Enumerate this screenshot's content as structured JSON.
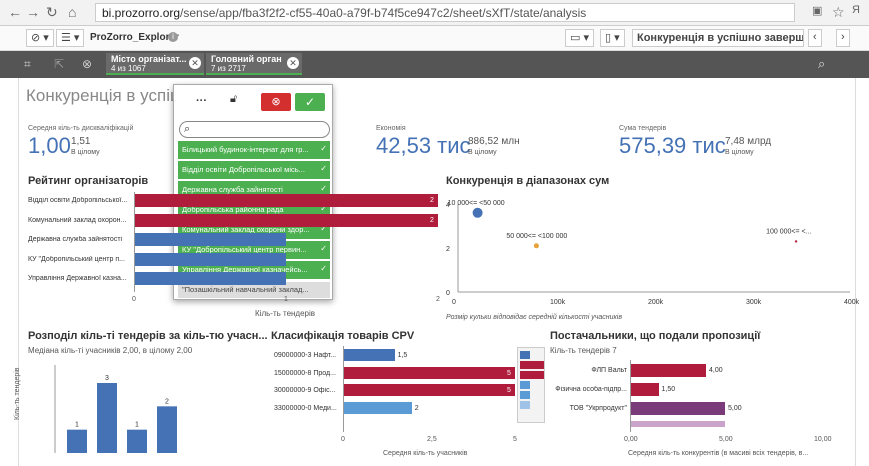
{
  "browser": {
    "url_domain": "bi.prozorro.org",
    "url_path": "/sense/app/fba3f2f2-cf55-40a0-a79f-b74f5ce947c2/sheet/sXfT/state/analysis"
  },
  "toolbar": {
    "app_name": "ProZorro_Explorer",
    "sheet_selector": "Конкуренція в успішно заверш..."
  },
  "selections": [
    {
      "field": "Місто організат...",
      "count": "4 из 1067"
    },
    {
      "field": "Головний орган",
      "count": "7 из 2717"
    }
  ],
  "sheet": {
    "title": "Конкуренція в успішно"
  },
  "kpis": [
    {
      "label": "Середня кіль-ть дискваліфікацій",
      "value": "1,00",
      "side_value": "1,51",
      "side_sub": "В цілому"
    },
    {
      "label": "Економія",
      "value": "42,53 тис",
      "side_value": "886,52 млн",
      "side_sub": "В цілому"
    },
    {
      "label": "Сума тендерів",
      "value": "575,39 тис",
      "side_value": "7,48 млрд",
      "side_sub": "В цілому"
    }
  ],
  "rating": {
    "title": "Рейтинг організаторів",
    "xlabel": "Кіль-ть тендерів",
    "ticks": [
      "0",
      "1",
      "2"
    ]
  },
  "range": {
    "title": "Конкуренція в діапазонах сум",
    "footnote": "Розмір кульки відповідає середній кількості учасників",
    "ytick": [
      "4",
      "2",
      "0"
    ],
    "xtick": [
      "0",
      "100k",
      "200k",
      "300k",
      "400k"
    ],
    "labels": [
      "10 000<= <50 000",
      "50 000<= <100 000",
      "100 000<= <..."
    ]
  },
  "distribution": {
    "title": "Розподіл кіль-ті тендерів за кіль-тю учасн...",
    "subtitle": "Медіана кіль-ті учасників 2,00, в цілому 2,00",
    "ylabel": "Кіль-ть тендерів"
  },
  "cpv": {
    "title": "Класифікація товарів CPV",
    "xlabel": "Середня кіль-ть учасників",
    "ticks": [
      "0",
      "2,5",
      "5"
    ]
  },
  "suppliers": {
    "title": "Постачальники, що подали пропозиції",
    "subtitle": "Кіль-ть тендерів 7",
    "xlabel": "Середня кіль-ть конкурентів (в масиві всіх тендерів, в...",
    "ticks": [
      "0,00",
      "5,00",
      "10,00"
    ]
  },
  "popup": {
    "search_value": "",
    "items": [
      "Білицький будинок-інтернат для гр...",
      "Відділ освіти Добропільської місь...",
      "Державна служба зайнятості",
      "Добропільська районна рада",
      "Комунальний заклад охорони здор...",
      "КУ \"Добропільський центр первин...",
      "Управління Державної казначейсь..."
    ],
    "extra_item": "\"Позашкільний навчальний заклад..."
  },
  "chart_data": [
    {
      "type": "bar",
      "title": "Рейтинг організаторів",
      "categories": [
        "Відділ освіти Добропільської...",
        "Комунальний заклад охорон...",
        "Державна служба зайнятості",
        "КУ \"Добропільський центр п...",
        "Управління Державної казна..."
      ],
      "values": [
        2,
        2,
        1,
        1,
        1
      ],
      "xlabel": "Кіль-ть тендерів",
      "xlim": [
        0,
        2
      ]
    },
    {
      "type": "scatter",
      "title": "Конкуренція в діапазонах сум",
      "points": [
        {
          "label": "10 000<= <50 000",
          "x": 20000,
          "y": 3.6
        },
        {
          "label": "50 000<= <100 000",
          "x": 80000,
          "y": 2.1
        },
        {
          "label": "100 000<= <...",
          "x": 345000,
          "y": 2.3
        }
      ],
      "xlim": [
        0,
        400000
      ],
      "ylim": [
        0,
        4
      ]
    },
    {
      "type": "bar",
      "title": "Розподіл кіль-ті тендерів за кіль-тю учасн...",
      "values": [
        1,
        3,
        1,
        2
      ],
      "ylabel": "Кіль-ть тендерів"
    },
    {
      "type": "bar",
      "title": "Класифікація товарів CPV",
      "categories": [
        "09000000-3 Нафт...",
        "15000000-8 Прод...",
        "30000000-9 Офіс...",
        "33000000-0 Меди..."
      ],
      "values": [
        1.5,
        5,
        5,
        2
      ],
      "xlabel": "Середня кіль-ть учасників",
      "xlim": [
        0,
        5
      ]
    },
    {
      "type": "bar",
      "title": "Постачальники, що подали пропозиції",
      "categories": [
        "ФЛП Вальт",
        "Фізична особа-підпр...",
        "ТОВ \"Укрпродукт\""
      ],
      "values": [
        4.0,
        1.5,
        5.0
      ],
      "xlim": [
        0,
        10
      ]
    }
  ],
  "colors": {
    "blue": "#4472b5",
    "crimson": "#b01c3c",
    "purple": "#7a3b7a",
    "lightblue": "#5b9bd5",
    "green": "#4caf50",
    "orange": "#e8a23c"
  }
}
